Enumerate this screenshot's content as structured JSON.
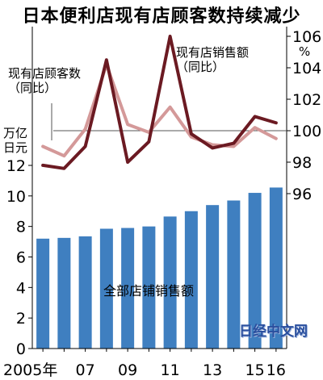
{
  "title": "日本便利店现有店顾客数持续减少",
  "watermark": "日经中文网",
  "chart_data": [
    {
      "type": "line",
      "x": [
        "2005",
        "2006",
        "2007",
        "2008",
        "2009",
        "2010",
        "2011",
        "2012",
        "2013",
        "2014",
        "2015",
        "2016"
      ],
      "x_tick_labels": [
        "2005年",
        "07",
        "09",
        "11",
        "13",
        "15",
        "16"
      ],
      "ylim": [
        96,
        106
      ],
      "y_ticks": [
        96,
        98,
        100,
        102,
        104,
        106
      ],
      "y_unit": "%",
      "series": [
        {
          "name": "现有店顾客数（同比）",
          "name_lines": [
            "现有店顾客数",
            "（同比）"
          ],
          "color": "#d49999",
          "values": [
            99.0,
            98.4,
            100.1,
            104.2,
            100.4,
            99.9,
            101.5,
            99.6,
            99.1,
            99.0,
            100.2,
            99.5
          ]
        },
        {
          "name": "现有店销售额（同比）",
          "name_lines": [
            "现有店销售额",
            "（同比）"
          ],
          "color": "#6b1a22",
          "values": [
            97.8,
            97.6,
            99.0,
            104.5,
            98.0,
            99.3,
            106.0,
            99.8,
            98.9,
            99.2,
            100.9,
            100.5
          ]
        }
      ]
    },
    {
      "type": "bar",
      "series_label": "全部店铺销售额",
      "ylabel_lines": [
        "万亿",
        "日元"
      ],
      "ylim": [
        0,
        12
      ],
      "y_ticks": [
        0,
        2,
        4,
        6,
        8,
        10,
        12
      ],
      "color": "#3f7fc0",
      "categories": [
        "2005",
        "2006",
        "2007",
        "2008",
        "2009",
        "2010",
        "2011",
        "2012",
        "2013",
        "2014",
        "2015",
        "2016"
      ],
      "values": [
        7.2,
        7.25,
        7.35,
        7.85,
        7.9,
        8.0,
        8.65,
        9.0,
        9.4,
        9.7,
        10.2,
        10.55
      ]
    }
  ]
}
